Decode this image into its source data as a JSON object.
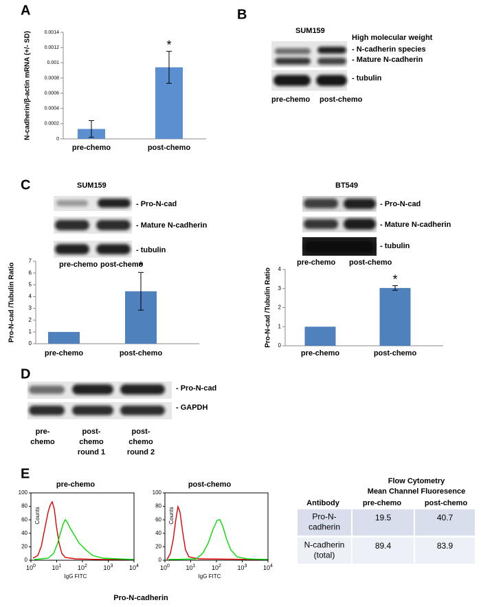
{
  "panel_labels": [
    "A",
    "B",
    "C",
    "D",
    "E"
  ],
  "chart_data": [
    {
      "type": "bar",
      "y_label": "N-cadherin/β-actin mRNA (+/- SD)",
      "categories": [
        "pre-chemo",
        "post-chemo"
      ],
      "values": [
        0.00013,
        0.00094
      ],
      "errors": [
        0.00011,
        0.00021
      ],
      "color": "#5b8fcf",
      "ylim": [
        0,
        0.0014
      ],
      "yticks": [
        0,
        0.0002,
        0.0004,
        0.0006,
        0.0008,
        0.001,
        0.0012,
        0.0014
      ],
      "annotations": [
        {
          "text": "*",
          "category": "post-chemo"
        }
      ]
    },
    {
      "type": "bar",
      "y_label": "Pro-N-cad /Tubulin Ratio",
      "categories": [
        "pre-chemo",
        "post-chemo"
      ],
      "values": [
        1,
        4.45
      ],
      "errors": [
        null,
        1.6
      ],
      "color": "#4f81bd",
      "ylim": [
        0,
        7
      ],
      "yticks": [
        0,
        1,
        2,
        3,
        4,
        5,
        6,
        7
      ],
      "annotations": [
        {
          "text": "*",
          "category": "post-chemo"
        }
      ]
    },
    {
      "type": "bar",
      "y_label": "Pro-N-cad /Tubulin Ratio",
      "categories": [
        "pre-chemo",
        "post-chemo"
      ],
      "values": [
        1,
        3.03
      ],
      "errors": [
        null,
        0.12
      ],
      "color": "#4f81bd",
      "ylim": [
        0,
        4
      ],
      "yticks": [
        0,
        1,
        2,
        3,
        4
      ],
      "annotations": [
        {
          "text": "*",
          "category": "post-chemo"
        }
      ]
    }
  ],
  "blot_B": {
    "cell_line": "SUM159",
    "band_labels": [
      "High molecular weight",
      "- N-cadherin species",
      "- Mature N-cadherin",
      "- tubulin"
    ],
    "lanes": [
      "pre-chemo",
      "post-chemo"
    ]
  },
  "blot_C_left": {
    "cell_line": "SUM159",
    "band_labels": [
      "- Pro-N-cad",
      "- Mature N-cadherin",
      "- tubulin"
    ],
    "lanes": [
      "pre-chemo",
      "post-chemo"
    ]
  },
  "blot_C_right": {
    "cell_line": "BT549",
    "band_labels": [
      "- Pro-N-cad",
      "- Mature N-cadherin",
      "- tubulin"
    ],
    "lanes": [
      "pre-chemo",
      "post-chemo"
    ]
  },
  "blot_D": {
    "band_labels": [
      "- Pro-N-cad",
      "- GAPDH"
    ],
    "lanes": [
      [
        "pre-",
        "chemo"
      ],
      [
        "post-",
        "chemo",
        "round 1"
      ],
      [
        "post-",
        "chemo",
        "round 2"
      ]
    ]
  },
  "flow": {
    "plots": [
      "pre-chemo",
      "post-chemo"
    ],
    "y_label": "Counts",
    "x_label": "IgG FITC",
    "yticks": [
      0,
      20,
      40,
      60,
      80,
      100
    ],
    "xticks": [
      {
        "base": "10",
        "exponent": "0"
      },
      {
        "base": "10",
        "exponent": "1"
      },
      {
        "base": "10",
        "exponent": "2"
      },
      {
        "base": "10",
        "exponent": "3"
      },
      {
        "base": "10",
        "exponent": "4"
      }
    ],
    "caption": "Pro-N-cadherin"
  },
  "table": {
    "title": [
      "Flow Cytometry",
      "Mean Channel Fluoresence"
    ],
    "header": [
      "Antibody",
      "pre-chemo",
      "post-chemo"
    ],
    "rows": [
      [
        [
          "Pro-N-",
          "cadherin"
        ],
        19.5,
        40.7
      ],
      [
        [
          "N-cadherin",
          "(total)"
        ],
        89.4,
        83.9
      ]
    ]
  }
}
